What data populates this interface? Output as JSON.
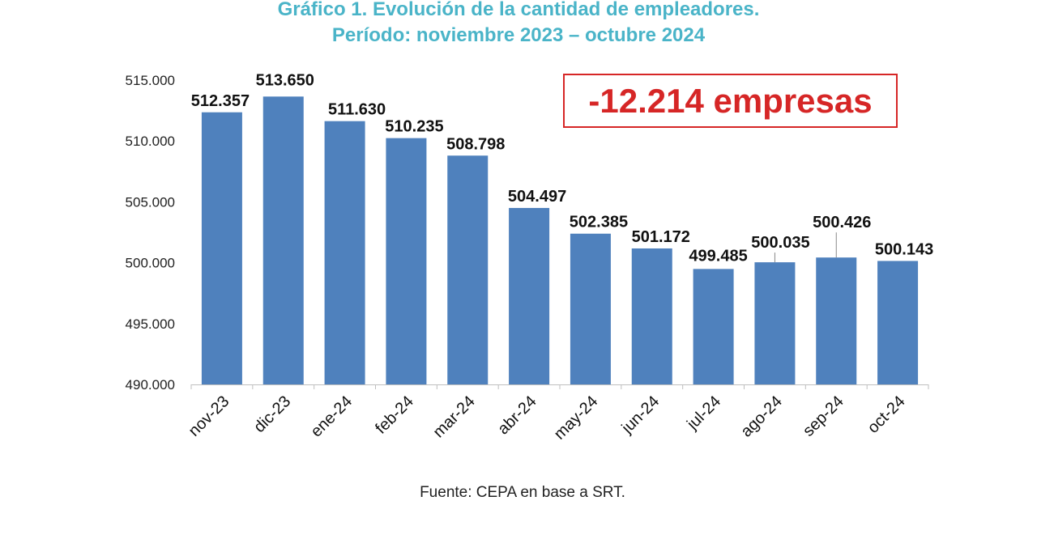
{
  "chart_data": {
    "type": "bar",
    "title": "Gráfico 1. Evolución de la cantidad de empleadores.",
    "subtitle": "Período: noviembre 2023 – octubre 2024",
    "categories": [
      "nov-23",
      "dic-23",
      "ene-24",
      "feb-24",
      "mar-24",
      "abr-24",
      "may-24",
      "jun-24",
      "jul-24",
      "ago-24",
      "sep-24",
      "oct-24"
    ],
    "values": [
      512357,
      513650,
      511630,
      510235,
      508798,
      504497,
      502385,
      501172,
      499485,
      500035,
      500426,
      500143
    ],
    "data_labels": [
      "512.357",
      "513.650",
      "511.630",
      "510.235",
      "508.798",
      "504.497",
      "502.385",
      "501.172",
      "499.485",
      "500.035",
      "500.426",
      "500.143"
    ],
    "ylim": [
      490000,
      515000
    ],
    "yticks": [
      490000,
      495000,
      500000,
      505000,
      510000,
      515000
    ],
    "ytick_labels": [
      "490.000",
      "495.000",
      "500.000",
      "505.000",
      "510.000",
      "515.000"
    ],
    "bar_color": "#4f81bd",
    "grid": false,
    "annotation": "-12.214 empresas",
    "annotation_color": "#d62626",
    "source": "Fuente: CEPA en base a SRT."
  }
}
